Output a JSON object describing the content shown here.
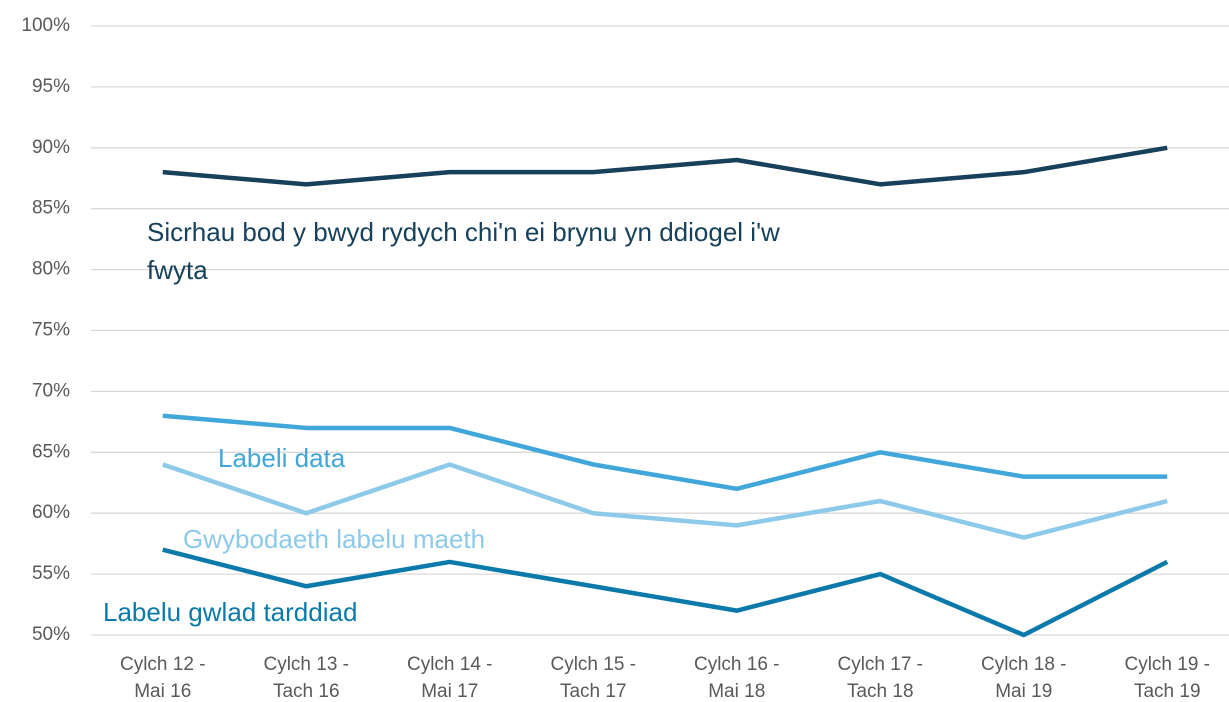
{
  "chart_data": {
    "type": "line",
    "categories": [
      [
        "Cylch 12 -",
        "Mai 16"
      ],
      [
        "Cylch 13 -",
        "Tach 16"
      ],
      [
        "Cylch 14 -",
        "Mai 17"
      ],
      [
        "Cylch 15 -",
        "Tach 17"
      ],
      [
        "Cylch 16 -",
        "Mai 18"
      ],
      [
        "Cylch 17 -",
        "Tach 18"
      ],
      [
        "Cylch 18 -",
        "Mai 19"
      ],
      [
        "Cylch 19 -",
        "Tach 19"
      ]
    ],
    "series": [
      {
        "name": "Sicrhau bod y bwyd rydych chi'n ei brynu yn ddiogel i'w fwyta",
        "color": "#17405a",
        "values": [
          88,
          87,
          88,
          88,
          89,
          87,
          88,
          90
        ]
      },
      {
        "name": "Labeli data",
        "color": "#41a6d9",
        "values": [
          68,
          67,
          67,
          64,
          62,
          65,
          63,
          63
        ]
      },
      {
        "name": "Gwybodaeth labelu maeth",
        "color": "#8dcaea",
        "values": [
          64,
          60,
          64,
          60,
          59,
          61,
          58,
          61
        ]
      },
      {
        "name": "Labelu gwlad tarddiad",
        "color": "#0b7aab",
        "values": [
          57,
          54,
          56,
          54,
          52,
          55,
          50,
          56
        ]
      }
    ],
    "ylim": [
      50,
      100
    ],
    "yticks": [
      {
        "value": 50,
        "label": "50%"
      },
      {
        "value": 55,
        "label": "55%"
      },
      {
        "value": 60,
        "label": "60%"
      },
      {
        "value": 65,
        "label": "65%"
      },
      {
        "value": 70,
        "label": "70%"
      },
      {
        "value": 75,
        "label": "75%"
      },
      {
        "value": 80,
        "label": "80%"
      },
      {
        "value": 85,
        "label": "85%"
      },
      {
        "value": 90,
        "label": "90%"
      },
      {
        "value": 95,
        "label": "95%"
      },
      {
        "value": 100,
        "label": "100%"
      }
    ],
    "grid": true
  }
}
